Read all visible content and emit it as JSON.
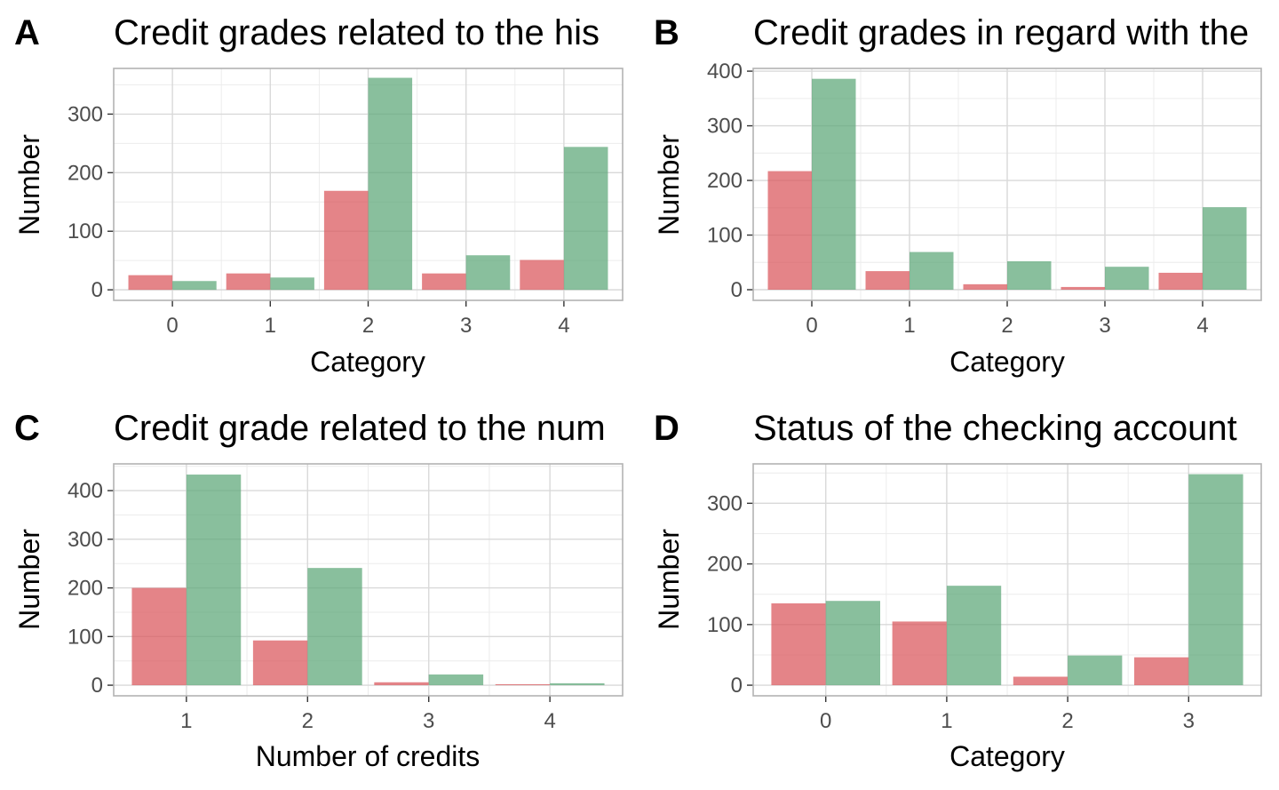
{
  "colors": {
    "bad": "#d9555a",
    "good": "#5ba677",
    "grid_major": "#d9d9d9",
    "grid_minor": "#ececec",
    "panel_border": "#b3b3b3",
    "tick_text": "#4d4d4d"
  },
  "chart_data": [
    {
      "type": "bar",
      "panel_label": "A",
      "title": "Credit grades related to the his",
      "xlabel": "Category",
      "ylabel": "Number",
      "categories": [
        "0",
        "1",
        "2",
        "3",
        "4"
      ],
      "yticks": [
        0,
        100,
        200,
        300
      ],
      "ylim": [
        -18,
        378
      ],
      "grid": true,
      "series": [
        {
          "color": "bad",
          "values": [
            25,
            28,
            169,
            28,
            51
          ]
        },
        {
          "color": "good",
          "values": [
            15,
            21,
            362,
            59,
            244
          ]
        }
      ]
    },
    {
      "type": "bar",
      "panel_label": "B",
      "title": "Credit grades in regard with the",
      "xlabel": "Category",
      "ylabel": "Number",
      "categories": [
        "0",
        "1",
        "2",
        "3",
        "4"
      ],
      "yticks": [
        0,
        100,
        200,
        300,
        400
      ],
      "ylim": [
        -19.5,
        405
      ],
      "grid": true,
      "series": [
        {
          "color": "bad",
          "values": [
            217,
            34,
            10,
            5,
            31
          ]
        },
        {
          "color": "good",
          "values": [
            386,
            69,
            52,
            42,
            151
          ]
        }
      ]
    },
    {
      "type": "bar",
      "panel_label": "C",
      "title": "Credit grade related to the num",
      "xlabel": "Number of credits",
      "ylabel": "Number",
      "categories": [
        "1",
        "2",
        "3",
        "4"
      ],
      "yticks": [
        0,
        100,
        200,
        300,
        400
      ],
      "ylim": [
        -21.8,
        455
      ],
      "grid": true,
      "series": [
        {
          "color": "bad",
          "values": [
            200,
            92,
            6,
            2
          ]
        },
        {
          "color": "good",
          "values": [
            433,
            241,
            22,
            4
          ]
        }
      ]
    },
    {
      "type": "bar",
      "panel_label": "D",
      "title": "Status of the checking account",
      "xlabel": "Category",
      "ylabel": "Number",
      "categories": [
        "0",
        "1",
        "2",
        "3"
      ],
      "yticks": [
        0,
        100,
        200,
        300
      ],
      "ylim": [
        -17.5,
        365
      ],
      "grid": true,
      "series": [
        {
          "color": "bad",
          "values": [
            135,
            105,
            14,
            46
          ]
        },
        {
          "color": "good",
          "values": [
            139,
            164,
            49,
            348
          ]
        }
      ]
    }
  ]
}
